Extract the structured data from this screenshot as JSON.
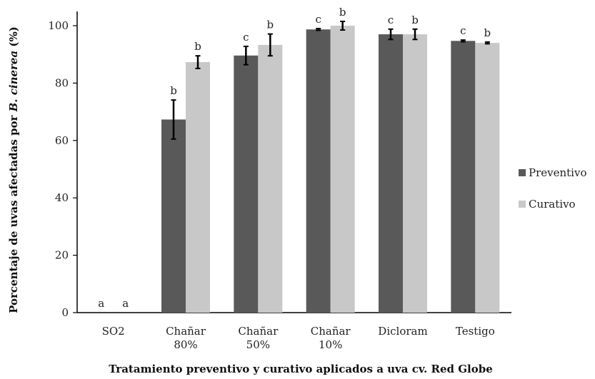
{
  "chart_data": {
    "type": "bar",
    "title": "",
    "xlabel": "Tratamiento preventivo y curativo aplicados a uva cv. Red Globe",
    "ylabel_prefix": "Porcentaje de uvas afectadas por ",
    "ylabel_italic": "B. cinerea",
    "ylabel_suffix": "  (%)",
    "ylim": [
      0,
      100
    ],
    "yticks": [
      0,
      20,
      40,
      60,
      80,
      100
    ],
    "categories": [
      [
        "SO2"
      ],
      [
        "Chañar",
        "80%"
      ],
      [
        "Chañar",
        "50%"
      ],
      [
        "Chañar",
        "10%"
      ],
      [
        "Dicloram"
      ],
      [
        "Testigo"
      ]
    ],
    "grid": false,
    "legend_position": "right",
    "series": [
      {
        "name": "Preventivo",
        "color": "#595959",
        "values": [
          0,
          67.3,
          89.6,
          98.7,
          97.0,
          94.7
        ],
        "errors": [
          0,
          6.8,
          3.2,
          0.3,
          1.8,
          0.3
        ],
        "letters": [
          "a",
          "b",
          "c",
          "c",
          "c",
          "c"
        ]
      },
      {
        "name": "Curativo",
        "color": "#c8c8c8",
        "values": [
          0,
          87.3,
          93.3,
          100.0,
          97.0,
          94.0
        ],
        "errors": [
          0,
          2.2,
          3.8,
          1.5,
          1.8,
          0.3
        ],
        "letters": [
          "a",
          "b",
          "b",
          "b",
          "b",
          "b"
        ]
      }
    ]
  }
}
